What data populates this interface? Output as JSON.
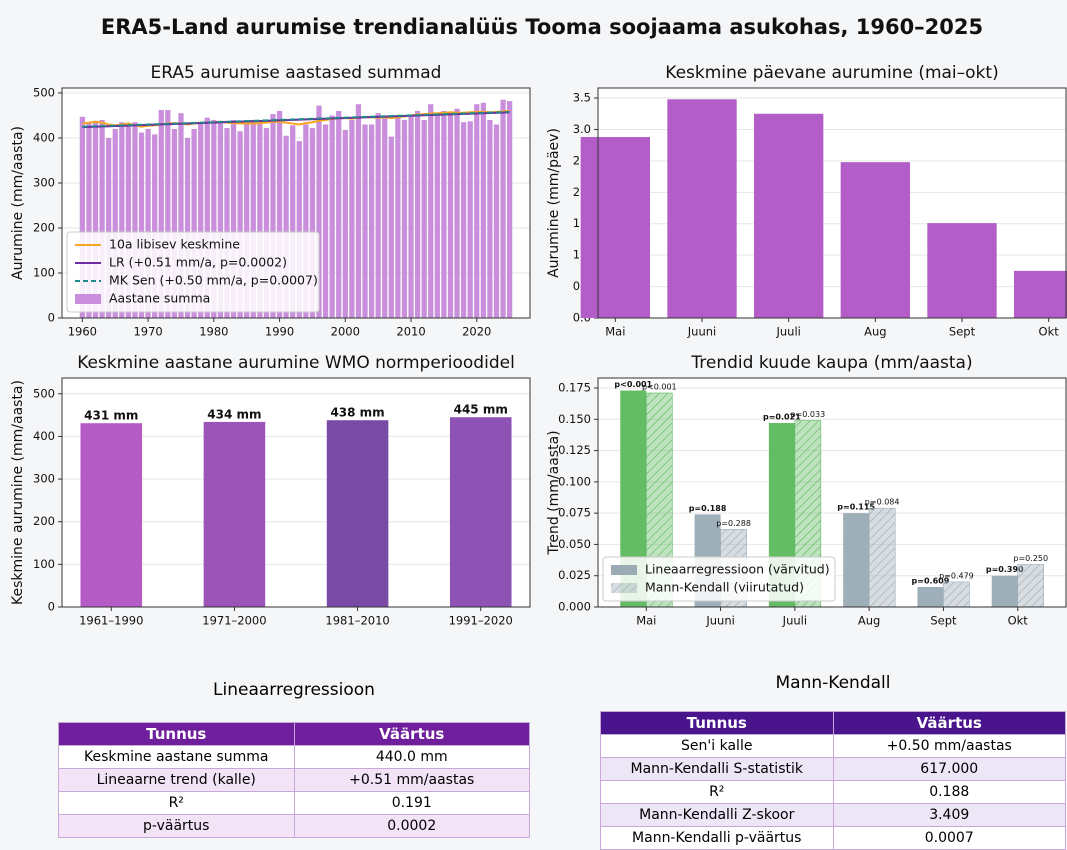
{
  "title": "ERA5-Land aurumise trendianalüüs Tooma soojaama asukohas, 1960–2025",
  "chart_data": [
    {
      "type": "combo",
      "title": "ERA5 aurumise aastased summad",
      "ylabel": "Aurumine (mm/aasta)",
      "x": [
        1960,
        1961,
        1962,
        1963,
        1964,
        1965,
        1966,
        1967,
        1968,
        1969,
        1970,
        1971,
        1972,
        1973,
        1974,
        1975,
        1976,
        1977,
        1978,
        1979,
        1980,
        1981,
        1982,
        1983,
        1984,
        1985,
        1986,
        1987,
        1988,
        1989,
        1990,
        1991,
        1992,
        1993,
        1994,
        1995,
        1996,
        1997,
        1998,
        1999,
        2000,
        2001,
        2002,
        2003,
        2004,
        2005,
        2006,
        2007,
        2008,
        2009,
        2010,
        2011,
        2012,
        2013,
        2014,
        2015,
        2016,
        2017,
        2018,
        2019,
        2020,
        2021,
        2022,
        2023,
        2024,
        2025
      ],
      "xlim": [
        1956.9,
        2028.1
      ],
      "xticks": [
        1960,
        1970,
        1980,
        1990,
        2000,
        2010,
        2020
      ],
      "ylim": [
        0,
        511
      ],
      "yticks": [
        0,
        100,
        200,
        300,
        400,
        500
      ],
      "grid": true,
      "legend": "lower left",
      "series": [
        {
          "name": "10a libisev keskmine",
          "style": "line",
          "color": "#f5a623",
          "values": [
            432,
            434,
            436,
            434,
            430,
            428,
            430,
            432,
            428,
            425,
            427,
            428,
            430,
            432,
            433,
            432,
            430,
            432,
            434,
            434,
            435,
            436,
            434,
            433,
            432,
            432,
            432,
            433,
            434,
            436,
            436,
            434,
            432,
            430,
            433,
            435,
            438,
            440,
            442,
            444,
            444,
            443,
            445,
            447,
            446,
            445,
            446,
            444,
            446,
            448,
            450,
            452,
            453,
            454,
            455,
            456,
            457,
            456,
            456,
            457,
            458,
            458,
            457,
            458,
            459,
            460
          ]
        },
        {
          "name": "LR (+0.51 mm/a, p=0.0002)",
          "style": "line",
          "color": "#6a2ca0",
          "x": [
            1960,
            2025
          ],
          "values": [
            424,
            457
          ]
        },
        {
          "name": "MK Sen (+0.50 mm/a, p=0.0007)",
          "style": "dashed",
          "color": "#1f8a8a",
          "x": [
            1960,
            2025
          ],
          "values": [
            425,
            458
          ]
        },
        {
          "name": "Aastane summa",
          "style": "bar",
          "color": "#c98fdc",
          "values": [
            447,
            432,
            438,
            440,
            400,
            420,
            435,
            432,
            435,
            412,
            420,
            408,
            462,
            462,
            420,
            455,
            400,
            420,
            433,
            445,
            440,
            438,
            422,
            440,
            415,
            440,
            440,
            438,
            422,
            453,
            460,
            405,
            428,
            393,
            430,
            422,
            472,
            430,
            450,
            460,
            418,
            440,
            475,
            430,
            430,
            455,
            450,
            403,
            450,
            440,
            448,
            460,
            440,
            475,
            455,
            460,
            455,
            465,
            435,
            437,
            475,
            478,
            440,
            430,
            485,
            482
          ]
        }
      ]
    },
    {
      "type": "bar",
      "title": "Keskmine päevane aurumine (mai–okt)",
      "ylabel": "Aurumine (mm/päev)",
      "categories": [
        "Mai",
        "Juuni",
        "Juuli",
        "Aug",
        "Sept",
        "Okt"
      ],
      "values": [
        2.88,
        3.48,
        3.25,
        2.48,
        1.51,
        0.75
      ],
      "color": "#b25dc8",
      "ylim": [
        0,
        3.66
      ],
      "yticks": [
        {
          "value": 0,
          "label": "0.0"
        },
        0.5,
        {
          "value": 1,
          "label": "1.0"
        },
        1.5,
        {
          "value": 2,
          "label": "2.0"
        },
        2.5,
        {
          "value": 3,
          "label": "3.0"
        },
        3.5
      ],
      "grid": true
    },
    {
      "type": "bar",
      "title": "Keskmine aastane aurumine WMO normperioodidel",
      "ylabel": "Keskmine aurumine (mm/aasta)",
      "categories": [
        "1961–1990",
        "1971–2000",
        "1981–2010",
        "1991–2020"
      ],
      "values": [
        431,
        434,
        438,
        445
      ],
      "value_labels": [
        "431 mm",
        "434 mm",
        "438 mm",
        "445 mm"
      ],
      "colors": [
        "#b45bc6",
        "#9b54b8",
        "#7a4ba6",
        "#8e52b4"
      ],
      "ylim": [
        0,
        537
      ],
      "yticks": [
        0,
        100,
        200,
        300,
        400,
        500
      ],
      "grid": true
    },
    {
      "type": "grouped_bar",
      "title": "Trendid kuude kaupa (mm/aasta)",
      "ylabel": "Trend (mm/aasta)",
      "categories": [
        "Mai",
        "Juuni",
        "Juuli",
        "Aug",
        "Sept",
        "Okt"
      ],
      "ylim": [
        0,
        0.183
      ],
      "yticks": [
        {
          "value": 0,
          "label": "0.000"
        },
        0.025,
        {
          "value": 0.05,
          "label": "0.050"
        },
        0.075,
        {
          "value": 0.1,
          "label": "0.100"
        },
        0.125,
        {
          "value": 0.15,
          "label": "0.150"
        },
        0.175
      ],
      "grid": true,
      "legend": "lower left",
      "series": [
        {
          "name": "Lineaarregressioon (värvitud)",
          "hatched": false,
          "legend_color": "#9aabb5",
          "values": [
            0.173,
            0.074,
            0.147,
            0.075,
            0.016,
            0.025
          ],
          "colors": [
            "#5cb85c",
            "#9aabb5",
            "#5cb85c",
            "#9aabb5",
            "#9aabb5",
            "#9aabb5"
          ],
          "p_labels": [
            "p<0.001",
            "p=0.188",
            "p=0.021",
            "p=0.115",
            "p=0.609",
            "p=0.390"
          ]
        },
        {
          "name": "Mann-Kendall (viirutatud)",
          "hatched": true,
          "legend_color": "#9aabb5",
          "values": [
            0.171,
            0.062,
            0.149,
            0.079,
            0.02,
            0.034
          ],
          "colors": [
            "#5cb85c",
            "#9aabb5",
            "#5cb85c",
            "#9aabb5",
            "#9aabb5",
            "#9aabb5"
          ],
          "p_labels": [
            "p<0.001",
            "p=0.288",
            "p=0.033",
            "p=0.084",
            "p=0.479",
            "p=0.250"
          ]
        }
      ]
    }
  ],
  "tables": [
    {
      "title": "Lineaarregressioon",
      "header_color": "#6f1e9c",
      "stripe_color": "#f3e3f7",
      "header": [
        "Tunnus",
        "Väärtus"
      ],
      "rows": [
        [
          "Keskmine aastane summa",
          "440.0 mm"
        ],
        [
          "Lineaarne trend (kalle)",
          "+0.51 mm/aastas"
        ],
        [
          "R²",
          "0.191"
        ],
        [
          "p-väärtus",
          "0.0002"
        ]
      ]
    },
    {
      "title": "Mann-Kendall",
      "header_color": "#4a148c",
      "stripe_color": "#ece6f6",
      "header": [
        "Tunnus",
        "Väärtus"
      ],
      "rows": [
        [
          "Sen'i kalle",
          "+0.50 mm/aastas"
        ],
        [
          "Mann-Kendalli S-statistik",
          "617.000"
        ],
        [
          "R²",
          "0.188"
        ],
        [
          "Mann-Kendalli Z-skoor",
          "3.409"
        ],
        [
          "Mann-Kendalli p-väärtus",
          "0.0007"
        ]
      ]
    }
  ]
}
